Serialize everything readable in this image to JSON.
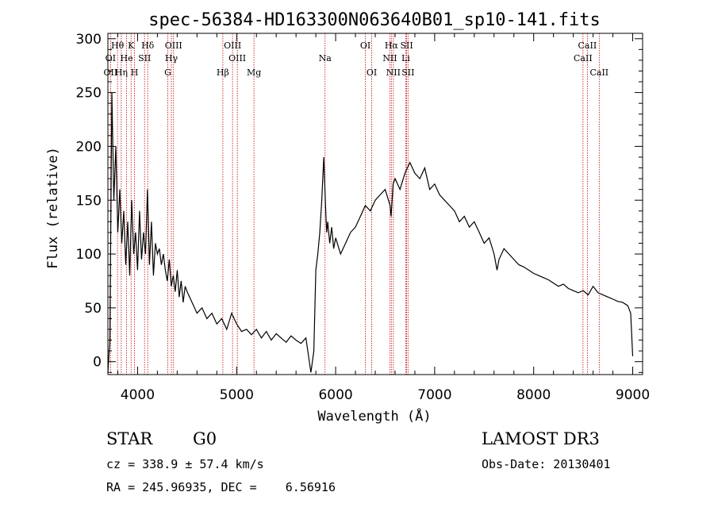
{
  "chart_data": {
    "type": "line",
    "title": "spec-56384-HD163300N063640B01_sp10-141.fits",
    "xlabel": "Wavelength (Å)",
    "ylabel": "Flux (relative)",
    "xlim": [
      3700,
      9100
    ],
    "ylim": [
      -12,
      305
    ],
    "xticks": [
      4000,
      5000,
      6000,
      7000,
      8000,
      9000
    ],
    "yticks": [
      0,
      50,
      100,
      150,
      200,
      250,
      300
    ],
    "series": [
      {
        "name": "flux",
        "x": [
          3700,
          3720,
          3740,
          3760,
          3780,
          3800,
          3820,
          3840,
          3860,
          3880,
          3900,
          3920,
          3940,
          3960,
          3980,
          4000,
          4020,
          4040,
          4060,
          4080,
          4100,
          4120,
          4140,
          4160,
          4180,
          4200,
          4220,
          4240,
          4260,
          4280,
          4300,
          4320,
          4340,
          4360,
          4380,
          4400,
          4420,
          4440,
          4460,
          4480,
          4500,
          4550,
          4600,
          4650,
          4700,
          4750,
          4800,
          4850,
          4900,
          4950,
          5000,
          5050,
          5100,
          5150,
          5200,
          5250,
          5300,
          5350,
          5400,
          5450,
          5500,
          5550,
          5600,
          5650,
          5700,
          5750,
          5780,
          5800,
          5820,
          5840,
          5860,
          5880,
          5890,
          5900,
          5910,
          5920,
          5940,
          5960,
          5980,
          6000,
          6050,
          6100,
          6150,
          6200,
          6250,
          6300,
          6350,
          6400,
          6450,
          6500,
          6550,
          6560,
          6580,
          6600,
          6650,
          6700,
          6750,
          6800,
          6850,
          6900,
          6950,
          7000,
          7050,
          7100,
          7150,
          7200,
          7250,
          7300,
          7350,
          7400,
          7450,
          7500,
          7550,
          7600,
          7630,
          7650,
          7700,
          7750,
          7800,
          7850,
          7900,
          7950,
          8000,
          8050,
          8100,
          8150,
          8200,
          8250,
          8300,
          8350,
          8400,
          8450,
          8500,
          8550,
          8600,
          8650,
          8700,
          8750,
          8800,
          8850,
          8900,
          8950,
          8980,
          9000
        ],
        "y": [
          -10,
          20,
          250,
          150,
          200,
          120,
          160,
          110,
          140,
          90,
          130,
          80,
          150,
          100,
          120,
          85,
          140,
          95,
          120,
          100,
          160,
          90,
          130,
          80,
          110,
          100,
          105,
          90,
          100,
          85,
          75,
          95,
          70,
          80,
          65,
          85,
          60,
          75,
          55,
          70,
          65,
          55,
          45,
          50,
          40,
          45,
          35,
          40,
          30,
          45,
          35,
          28,
          30,
          25,
          30,
          22,
          28,
          20,
          26,
          22,
          18,
          24,
          20,
          17,
          22,
          -10,
          10,
          85,
          100,
          120,
          150,
          190,
          165,
          140,
          120,
          130,
          110,
          125,
          105,
          115,
          100,
          110,
          120,
          125,
          135,
          145,
          140,
          150,
          155,
          160,
          145,
          135,
          165,
          170,
          160,
          175,
          185,
          175,
          170,
          180,
          160,
          165,
          155,
          150,
          145,
          140,
          130,
          135,
          125,
          130,
          120,
          110,
          115,
          100,
          85,
          95,
          105,
          100,
          95,
          90,
          88,
          85,
          82,
          80,
          78,
          76,
          73,
          70,
          72,
          68,
          66,
          64,
          66,
          62,
          70,
          64,
          62,
          60,
          58,
          56,
          55,
          52,
          45,
          5
        ]
      }
    ],
    "spectral_lines": [
      {
        "label": "Hθ",
        "wavelength": 3797,
        "row": 0
      },
      {
        "label": "K",
        "wavelength": 3934,
        "row": 0
      },
      {
        "label": "Hδ",
        "wavelength": 4102,
        "row": 0
      },
      {
        "label": "OIII",
        "wavelength": 4363,
        "row": 0
      },
      {
        "label": "OIII",
        "wavelength": 4959,
        "row": 0
      },
      {
        "label": "OI",
        "wavelength": 6300,
        "row": 0
      },
      {
        "label": "Hα",
        "wavelength": 6563,
        "row": 0
      },
      {
        "label": "SII",
        "wavelength": 6717,
        "row": 0
      },
      {
        "label": "CaII",
        "wavelength": 8542,
        "row": 0
      },
      {
        "label": "OI",
        "wavelength": 3727,
        "row": 1
      },
      {
        "label": "He",
        "wavelength": 3889,
        "row": 1
      },
      {
        "label": "SII",
        "wavelength": 4070,
        "row": 1
      },
      {
        "label": "Hγ",
        "wavelength": 4341,
        "row": 1
      },
      {
        "label": "OIII",
        "wavelength": 5007,
        "row": 1
      },
      {
        "label": "Na",
        "wavelength": 5893,
        "row": 1
      },
      {
        "label": "NII",
        "wavelength": 6548,
        "row": 1
      },
      {
        "label": "Li",
        "wavelength": 6708,
        "row": 1
      },
      {
        "label": "CaII",
        "wavelength": 8498,
        "row": 1
      },
      {
        "label": "OII",
        "wavelength": 3727,
        "row": 2
      },
      {
        "label": "Hη",
        "wavelength": 3835,
        "row": 2
      },
      {
        "label": "H",
        "wavelength": 3969,
        "row": 2
      },
      {
        "label": "G",
        "wavelength": 4305,
        "row": 2
      },
      {
        "label": "Hβ",
        "wavelength": 4861,
        "row": 2
      },
      {
        "label": "Mg",
        "wavelength": 5175,
        "row": 2
      },
      {
        "label": "OI",
        "wavelength": 6364,
        "row": 2
      },
      {
        "label": "NII",
        "wavelength": 6583,
        "row": 2
      },
      {
        "label": "SII",
        "wavelength": 6731,
        "row": 2
      },
      {
        "label": "CaII",
        "wavelength": 8662,
        "row": 2
      }
    ],
    "line_marker_color": "#c00000"
  },
  "info": {
    "object_class": "STAR",
    "subclass": "G0",
    "survey": "LAMOST DR3",
    "redshift": "cz = 338.9 ± 57.4 km/s",
    "obs_date": "Obs-Date: 20130401",
    "coords": "RA = 245.96935, DEC =    6.56916"
  }
}
